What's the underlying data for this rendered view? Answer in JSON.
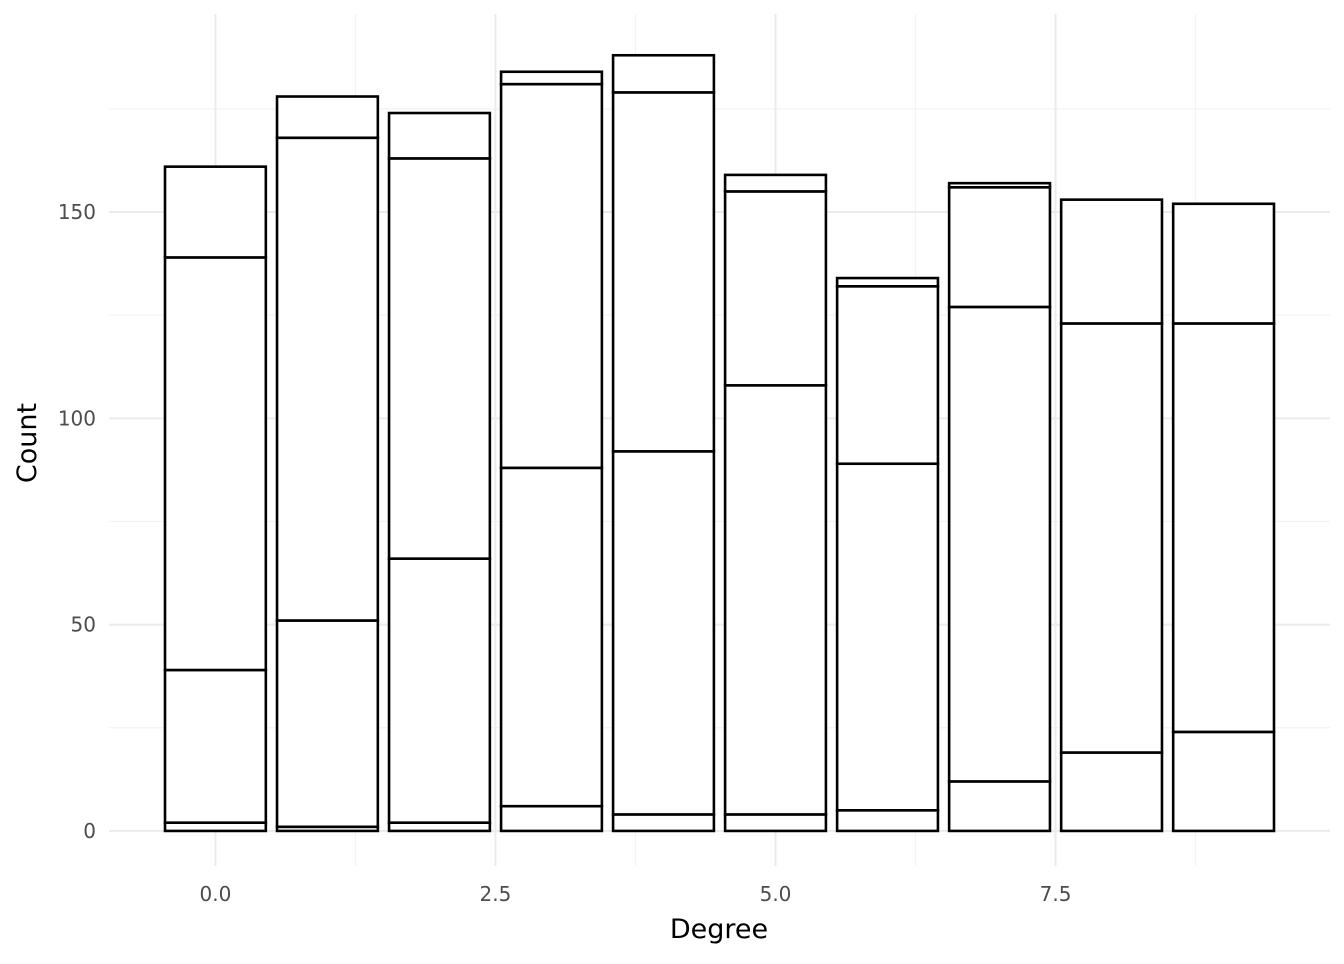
{
  "chart_data": {
    "type": "bar",
    "stacked": true,
    "xlabel": "Degree",
    "ylabel": "Count",
    "x": [
      0,
      1,
      2,
      3,
      4,
      5,
      6,
      7,
      8,
      9
    ],
    "xlim": [
      -0.95,
      9.95
    ],
    "ylim": [
      -8.5,
      198
    ],
    "x_ticks": [
      0,
      2.5,
      5,
      7.5
    ],
    "x_tick_labels": [
      "0.0",
      "2.5",
      "5.0",
      "7.5"
    ],
    "y_ticks": [
      0,
      50,
      100,
      150
    ],
    "y_tick_labels": [
      "0",
      "50",
      "100",
      "150"
    ],
    "grid": true,
    "legend": "none",
    "bar_fill": "#ffffff",
    "bar_outline": "#000000",
    "segments": [
      [
        2,
        37,
        100,
        22
      ],
      [
        1,
        50,
        117,
        10
      ],
      [
        2,
        64,
        97,
        11
      ],
      [
        6,
        82,
        93,
        3
      ],
      [
        4,
        88,
        87,
        9
      ],
      [
        4,
        104,
        47,
        4
      ],
      [
        5,
        84,
        43,
        2
      ],
      [
        12,
        115,
        29,
        1
      ],
      [
        19,
        104,
        30
      ],
      [
        24,
        99,
        29
      ]
    ],
    "totals": [
      161,
      178,
      174,
      184,
      188,
      159,
      134,
      157,
      153,
      152
    ]
  }
}
